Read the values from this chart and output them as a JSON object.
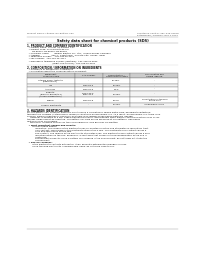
{
  "bg_color": "#ffffff",
  "header_left": "Product Name: Lithium Ion Battery Cell",
  "header_right": "Substance Control: SBF-049-00818\nEstablished / Revision: Dec.1.2010",
  "title": "Safety data sheet for chemical products (SDS)",
  "section1_title": "1. PRODUCT AND COMPANY IDENTIFICATION",
  "section1_lines": [
    "  • Product name: Lithium Ion Battery Cell",
    "  • Product code: Cylindrical-type cell",
    "       BF-86600, BF-86500, BF-86504",
    "  • Company name:       Beway Electric Co., Ltd.,  Mobile Energy Company",
    "  • Address:               202-1,  Kamotoura,  Sumoto-City, Hyogo, Japan",
    "  • Telephone number:   +81-799-26-4111",
    "  • Fax number:  +81-799-26-4121",
    "  • Emergency telephone number (daytime): +81-799-26-3662",
    "                                  (Night and holiday): +81-799-26-4101"
  ],
  "section2_title": "2. COMPOSITION / INFORMATION ON INGREDIENTS",
  "section2_intro": "  • Substance or preparation: Preparation",
  "section2_sub": "  • Information about the chemical nature of product:",
  "table_headers": [
    "Component\nchemical name",
    "CAS number",
    "Concentration /\nConcentration range",
    "Classification and\nhazard labeling"
  ],
  "table_col_starts": [
    0.01,
    0.32,
    0.5,
    0.68
  ],
  "table_col_ends": [
    0.32,
    0.5,
    0.68,
    0.99
  ],
  "table_rows": [
    [
      "Lithium nickel tantalite\n(LiMnCoNiO2)",
      "-",
      "30-45%",
      "-"
    ],
    [
      "Iron",
      "7439-89-6",
      "15-25%",
      "-"
    ],
    [
      "Aluminum",
      "7429-90-5",
      "2-5%",
      "-"
    ],
    [
      "Graphite\n(Black of graphite-1)\n(All black graphite-2)",
      "77782-42-5\n1333-44-2",
      "10-25%",
      "-"
    ],
    [
      "Copper",
      "7440-50-8",
      "5-15%",
      "Sensitization of the skin\ngroup No.2"
    ],
    [
      "Organic electrolyte",
      "-",
      "10-20%",
      "Inflammable liquid"
    ]
  ],
  "table_row_heights": [
    1.6,
    1.0,
    1.0,
    1.8,
    1.6,
    1.0
  ],
  "section3_title": "3. HAZARDS IDENTIFICATION",
  "section3_para1": "For the battery cell, chemical materials are stored in a hermetically sealed metal case, designed to withstand\ntemperature changes in atmospheric-pressure conditions during normal use. As a result, during normal use, there is no\nphysical danger of ignition or explosion and there is no danger of hazardous materials leakage.\n    However, if exposed to a fire, added mechanical shocks, decomposed, when electro-chemical reactions may occur,\nthe gas inside cannot be operated. The battery cell case will be breached at fire patterns. Hazardous\nmaterials may be released.\n    Moreover, if heated strongly by the surrounding fire, acid gas may be emitted.",
  "section3_bullet1_title": "  • Most important hazard and effects:",
  "section3_bullet1_body": "       Human health effects:\n           Inhalation: The release of the electrolyte has an anesthesia action and stimulates in respiratory tract.\n           Skin contact: The release of the electrolyte stimulates a skin. The electrolyte skin contact causes a\n           sore and stimulation on the skin.\n           Eye contact: The release of the electrolyte stimulates eyes. The electrolyte eye contact causes a sore\n           and stimulation on the eye. Especially, a substance that causes a strong inflammation of the eye is\n           contained.\n           Environmental effects: Since a battery cell released in the environment, do not throw out it into the\n           environment.",
  "section3_bullet2_title": "  • Specific hazards:",
  "section3_bullet2_body": "       If the electrolyte contacts with water, it will generate detrimental hydrogen fluoride.\n       Since the lead-electrolyte is inflammable liquid, do not bring close to fire."
}
